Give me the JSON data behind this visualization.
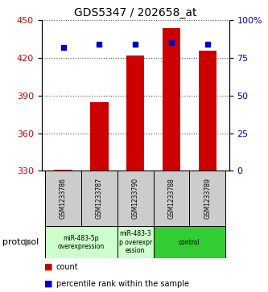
{
  "title": "GDS5347 / 202658_at",
  "samples": [
    "GSM1233786",
    "GSM1233787",
    "GSM1233790",
    "GSM1233788",
    "GSM1233789"
  ],
  "counts": [
    331,
    385,
    422,
    444,
    426
  ],
  "percentiles": [
    82,
    84,
    84,
    85,
    84
  ],
  "ylim_left": [
    330,
    450
  ],
  "ylim_right": [
    0,
    100
  ],
  "yticks_left": [
    330,
    360,
    390,
    420,
    450
  ],
  "yticks_right": [
    0,
    25,
    50,
    75,
    100
  ],
  "bar_color": "#cc0000",
  "dot_color": "#0000cc",
  "protocol_groups": [
    {
      "label": "miR-483-5p\noverexpression",
      "indices": [
        0,
        1
      ],
      "color": "#ccffcc"
    },
    {
      "label": "miR-483-3\np overexpr\nession",
      "indices": [
        2
      ],
      "color": "#ccffcc"
    },
    {
      "label": "control",
      "indices": [
        3,
        4
      ],
      "color": "#33cc33"
    }
  ],
  "protocol_label": "protocol",
  "legend_count_label": "count",
  "legend_percentile_label": "percentile rank within the sample",
  "grid_color": "#555555",
  "sample_box_color": "#cccccc",
  "bar_width": 0.5,
  "dot_size": 4.5
}
